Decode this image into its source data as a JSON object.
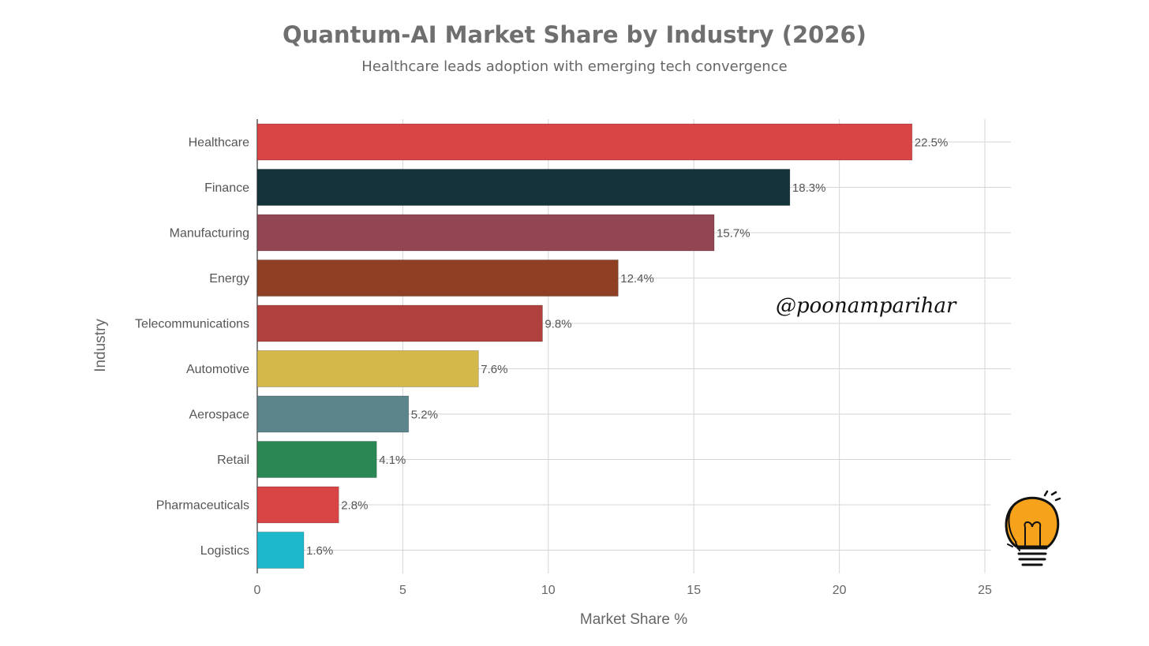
{
  "chart_data": {
    "type": "bar",
    "orientation": "horizontal",
    "title": "Quantum-AI Market Share by Industry (2026)",
    "subtitle": "Healthcare leads adoption with emerging tech convergence",
    "xlabel": "Market Share %",
    "ylabel": "Industry",
    "xlim": [
      0,
      25
    ],
    "xticks": [
      0,
      5,
      10,
      15,
      20,
      25
    ],
    "categories": [
      "Healthcare",
      "Finance",
      "Manufacturing",
      "Energy",
      "Telecommunications",
      "Automotive",
      "Aerospace",
      "Retail",
      "Pharmaceuticals",
      "Logistics"
    ],
    "values": [
      22.5,
      18.3,
      15.7,
      12.4,
      9.8,
      7.6,
      5.2,
      4.1,
      2.8,
      1.6
    ],
    "labels": [
      "22.5%",
      "18.3%",
      "15.7%",
      "12.4%",
      "9.8%",
      "7.6%",
      "5.2%",
      "4.1%",
      "2.8%",
      "1.6%"
    ],
    "colors": [
      "#d94444",
      "#133239",
      "#924553",
      "#8f4024",
      "#b1413e",
      "#d2b94a",
      "#5b858b",
      "#2b8753",
      "#d94444",
      "#1db8cc"
    ],
    "grid": true,
    "watermark": "@poonamparihar"
  }
}
